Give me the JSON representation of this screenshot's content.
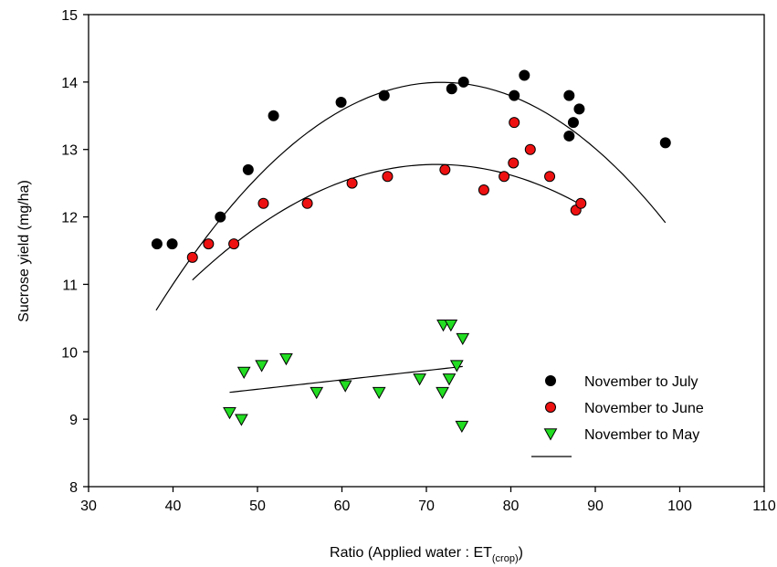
{
  "chart_data": {
    "type": "scatter",
    "xlabel": "Ratio (Applied water : ET",
    "xlabel_sub": "(crop)",
    "xlabel_end": ")",
    "ylabel": "Sucrose yield (mg/ha)",
    "xlim": [
      30,
      110
    ],
    "ylim": [
      8,
      15
    ],
    "xticks": [
      30,
      40,
      50,
      60,
      70,
      80,
      90,
      100,
      110
    ],
    "yticks": [
      8,
      9,
      10,
      11,
      12,
      13,
      14,
      15
    ],
    "grid": false,
    "legend_position": "lower-right",
    "series": [
      {
        "name": "November to July",
        "marker": "circle",
        "color": "#000000",
        "points": [
          [
            38.1,
            11.6
          ],
          [
            39.9,
            11.6
          ],
          [
            45.6,
            12.0
          ],
          [
            48.9,
            12.7
          ],
          [
            51.9,
            13.5
          ],
          [
            59.9,
            13.7
          ],
          [
            65.0,
            13.8
          ],
          [
            73.0,
            13.9
          ],
          [
            74.4,
            14.0
          ],
          [
            80.4,
            13.8
          ],
          [
            81.6,
            14.1
          ],
          [
            86.9,
            13.8
          ],
          [
            87.4,
            13.4
          ],
          [
            88.1,
            13.6
          ],
          [
            86.9,
            13.2
          ],
          [
            98.3,
            13.1
          ]
        ],
        "fit": [
          -0.00296,
          0.425,
          -1.26
        ],
        "fit_range": [
          38,
          98.3
        ]
      },
      {
        "name": "November to June",
        "marker": "circle",
        "color": "#ee1111",
        "points": [
          [
            42.3,
            11.4
          ],
          [
            44.2,
            11.6
          ],
          [
            47.2,
            11.6
          ],
          [
            50.7,
            12.2
          ],
          [
            55.9,
            12.2
          ],
          [
            61.2,
            12.5
          ],
          [
            65.4,
            12.6
          ],
          [
            72.2,
            12.7
          ],
          [
            76.8,
            12.4
          ],
          [
            79.2,
            12.6
          ],
          [
            80.3,
            12.8
          ],
          [
            80.4,
            13.4
          ],
          [
            82.3,
            13.0
          ],
          [
            84.6,
            12.6
          ],
          [
            87.7,
            12.1
          ],
          [
            88.3,
            12.2
          ]
        ],
        "fit": [
          -0.00205,
          0.292,
          2.38
        ],
        "fit_range": [
          42.3,
          88.3
        ]
      },
      {
        "name": "November to May",
        "marker": "triangle-down",
        "color": "#22dd22",
        "points": [
          [
            46.7,
            9.1
          ],
          [
            48.1,
            9.0
          ],
          [
            48.4,
            9.7
          ],
          [
            50.5,
            9.8
          ],
          [
            53.4,
            9.9
          ],
          [
            57.0,
            9.4
          ],
          [
            60.4,
            9.5
          ],
          [
            64.4,
            9.4
          ],
          [
            69.2,
            9.6
          ],
          [
            71.9,
            9.4
          ],
          [
            72.0,
            10.4
          ],
          [
            72.9,
            10.4
          ],
          [
            72.7,
            9.6
          ],
          [
            73.6,
            9.8
          ],
          [
            74.3,
            10.2
          ],
          [
            74.2,
            8.9
          ]
        ],
        "fit": [
          0,
          0.01389,
          8.75
        ],
        "fit_range": [
          46.7,
          74.3
        ]
      }
    ],
    "legend": [
      "November to July",
      "November to June",
      "November to May"
    ]
  }
}
